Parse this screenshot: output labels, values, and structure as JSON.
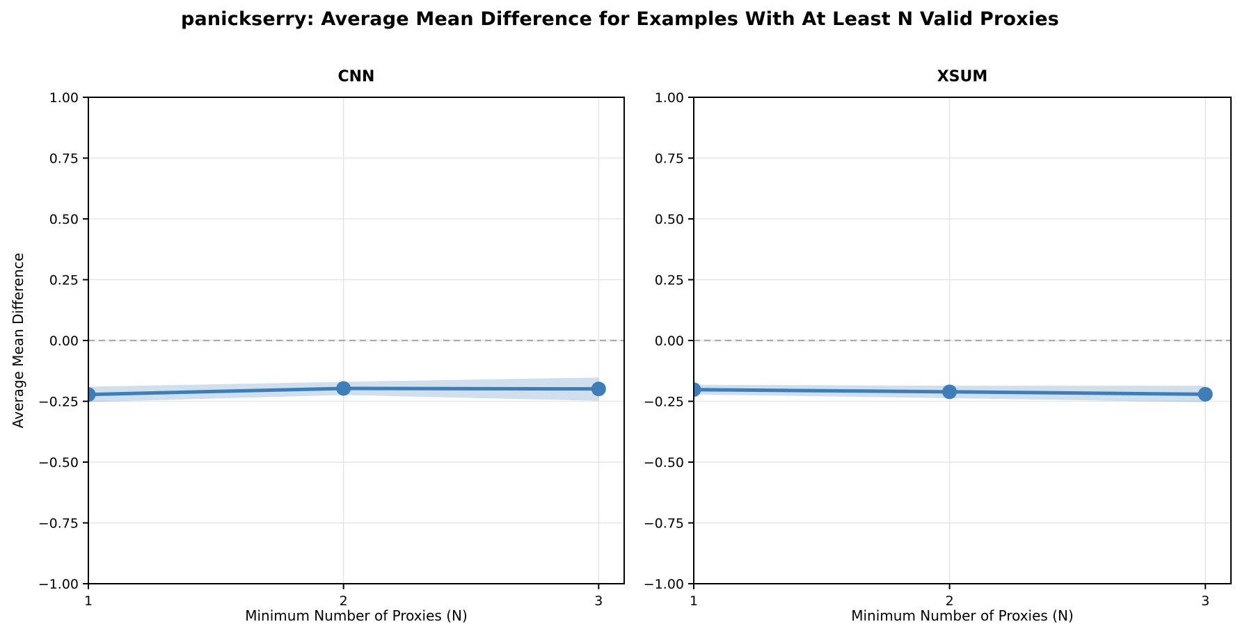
{
  "page": {
    "title": "panickserry: Average Mean Difference for Examples With At Least N Valid Proxies"
  },
  "colors": {
    "line": "#3e7eb8",
    "marker": "#3e7eb8",
    "band": "#3e7eb8",
    "band_opacity": 0.25,
    "zero_line": "#aaaaaa",
    "grid": "#e6e6e6",
    "spine": "#000000",
    "text": "#000000",
    "background": "#ffffff"
  },
  "chart_data": [
    {
      "type": "line",
      "title": "CNN",
      "xlabel": "Minimum Number of Proxies (N)",
      "ylabel": "Average Mean Difference",
      "x": [
        1,
        2,
        3
      ],
      "series": [
        {
          "name": "average_mean_difference",
          "values": [
            -0.222,
            -0.197,
            -0.199
          ]
        }
      ],
      "band": {
        "name": "confidence_band",
        "high": [
          -0.19,
          -0.17,
          -0.152
        ],
        "low": [
          -0.253,
          -0.224,
          -0.248
        ]
      },
      "xlim": [
        1,
        3.1
      ],
      "ylim": [
        -1,
        1
      ],
      "xticks": [
        {
          "value": 1,
          "label": "1"
        },
        {
          "value": 2,
          "label": "2"
        },
        {
          "value": 3,
          "label": "3"
        }
      ],
      "yticks": [
        {
          "value": 1.0,
          "label": "1.00"
        },
        {
          "value": 0.75,
          "label": "0.75"
        },
        {
          "value": 0.5,
          "label": "0.50"
        },
        {
          "value": 0.25,
          "label": "0.25"
        },
        {
          "value": 0.0,
          "label": "0.00"
        },
        {
          "value": -0.25,
          "label": "−0.25"
        },
        {
          "value": -0.5,
          "label": "−0.50"
        },
        {
          "value": -0.75,
          "label": "−0.75"
        },
        {
          "value": -1.0,
          "label": "−1.00"
        }
      ],
      "zero_reference_line": true,
      "grid": true,
      "legend": null
    },
    {
      "type": "line",
      "title": "XSUM",
      "xlabel": "Minimum Number of Proxies (N)",
      "ylabel": "",
      "x": [
        1,
        2,
        3
      ],
      "series": [
        {
          "name": "average_mean_difference",
          "values": [
            -0.202,
            -0.211,
            -0.221
          ]
        }
      ],
      "band": {
        "name": "confidence_band",
        "high": [
          -0.182,
          -0.186,
          -0.186
        ],
        "low": [
          -0.222,
          -0.237,
          -0.254
        ]
      },
      "xlim": [
        1,
        3.1
      ],
      "ylim": [
        -1,
        1
      ],
      "xticks": [
        {
          "value": 1,
          "label": "1"
        },
        {
          "value": 2,
          "label": "2"
        },
        {
          "value": 3,
          "label": "3"
        }
      ],
      "yticks": [
        {
          "value": 1.0,
          "label": "1.00"
        },
        {
          "value": 0.75,
          "label": "0.75"
        },
        {
          "value": 0.5,
          "label": "0.50"
        },
        {
          "value": 0.25,
          "label": "0.25"
        },
        {
          "value": 0.0,
          "label": "0.00"
        },
        {
          "value": -0.25,
          "label": "−0.25"
        },
        {
          "value": -0.5,
          "label": "−0.50"
        },
        {
          "value": -0.75,
          "label": "−0.75"
        },
        {
          "value": -1.0,
          "label": "−1.00"
        }
      ],
      "zero_reference_line": true,
      "grid": true,
      "legend": null
    }
  ]
}
